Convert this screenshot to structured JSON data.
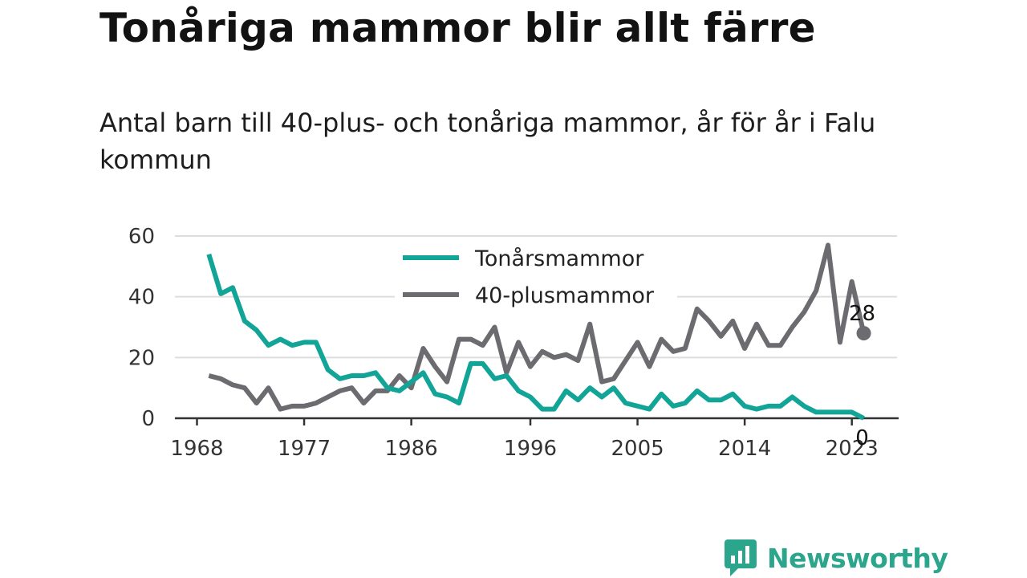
{
  "title": "Tonåriga mammor blir allt färre",
  "subtitle": "Antal barn till 40-plus- och tonåriga mammor, år för år i Falu kommun",
  "brand": "Newsworthy",
  "colors": {
    "teen": "#12a597",
    "forty": "#6b6b70",
    "grid": "#dddddd",
    "axis": "#333333",
    "brand": "#2ca58d"
  },
  "chart_data": {
    "type": "line",
    "x": [
      1969,
      1970,
      1971,
      1972,
      1973,
      1974,
      1975,
      1976,
      1977,
      1978,
      1979,
      1980,
      1981,
      1982,
      1983,
      1984,
      1985,
      1986,
      1987,
      1988,
      1989,
      1990,
      1991,
      1992,
      1993,
      1994,
      1995,
      1996,
      1997,
      1998,
      1999,
      2000,
      2001,
      2002,
      2003,
      2004,
      2005,
      2006,
      2007,
      2008,
      2009,
      2010,
      2011,
      2012,
      2013,
      2014,
      2015,
      2016,
      2017,
      2018,
      2019,
      2020,
      2021,
      2022,
      2023,
      2024
    ],
    "series": [
      {
        "name": "Tonårsmammor",
        "values": [
          54,
          41,
          43,
          32,
          29,
          24,
          26,
          24,
          25,
          25,
          16,
          13,
          14,
          14,
          15,
          10,
          9,
          12,
          15,
          8,
          7,
          5,
          18,
          18,
          13,
          14,
          9,
          7,
          3,
          3,
          9,
          6,
          10,
          7,
          10,
          5,
          4,
          3,
          8,
          4,
          5,
          9,
          6,
          6,
          8,
          4,
          3,
          4,
          4,
          7,
          4,
          2,
          2,
          2,
          2,
          0
        ]
      },
      {
        "name": "40-plusmammor",
        "values": [
          14,
          13,
          11,
          10,
          5,
          10,
          3,
          4,
          4,
          5,
          7,
          9,
          10,
          5,
          9,
          9,
          14,
          10,
          23,
          17,
          12,
          26,
          26,
          24,
          30,
          15,
          25,
          17,
          22,
          20,
          21,
          19,
          31,
          12,
          13,
          19,
          25,
          17,
          26,
          22,
          23,
          36,
          32,
          27,
          32,
          23,
          31,
          24,
          24,
          30,
          35,
          42,
          57,
          25,
          45,
          28
        ]
      }
    ],
    "xticks": [
      "1968",
      "1977",
      "1986",
      "1996",
      "2005",
      "2014",
      "2023"
    ],
    "yticks": [
      "0",
      "20",
      "40",
      "60"
    ],
    "ylim": [
      0,
      60
    ],
    "xlim": [
      1968,
      2024
    ],
    "end_labels": [
      "0",
      "28"
    ],
    "legend_position": "top-center",
    "grid": true
  }
}
